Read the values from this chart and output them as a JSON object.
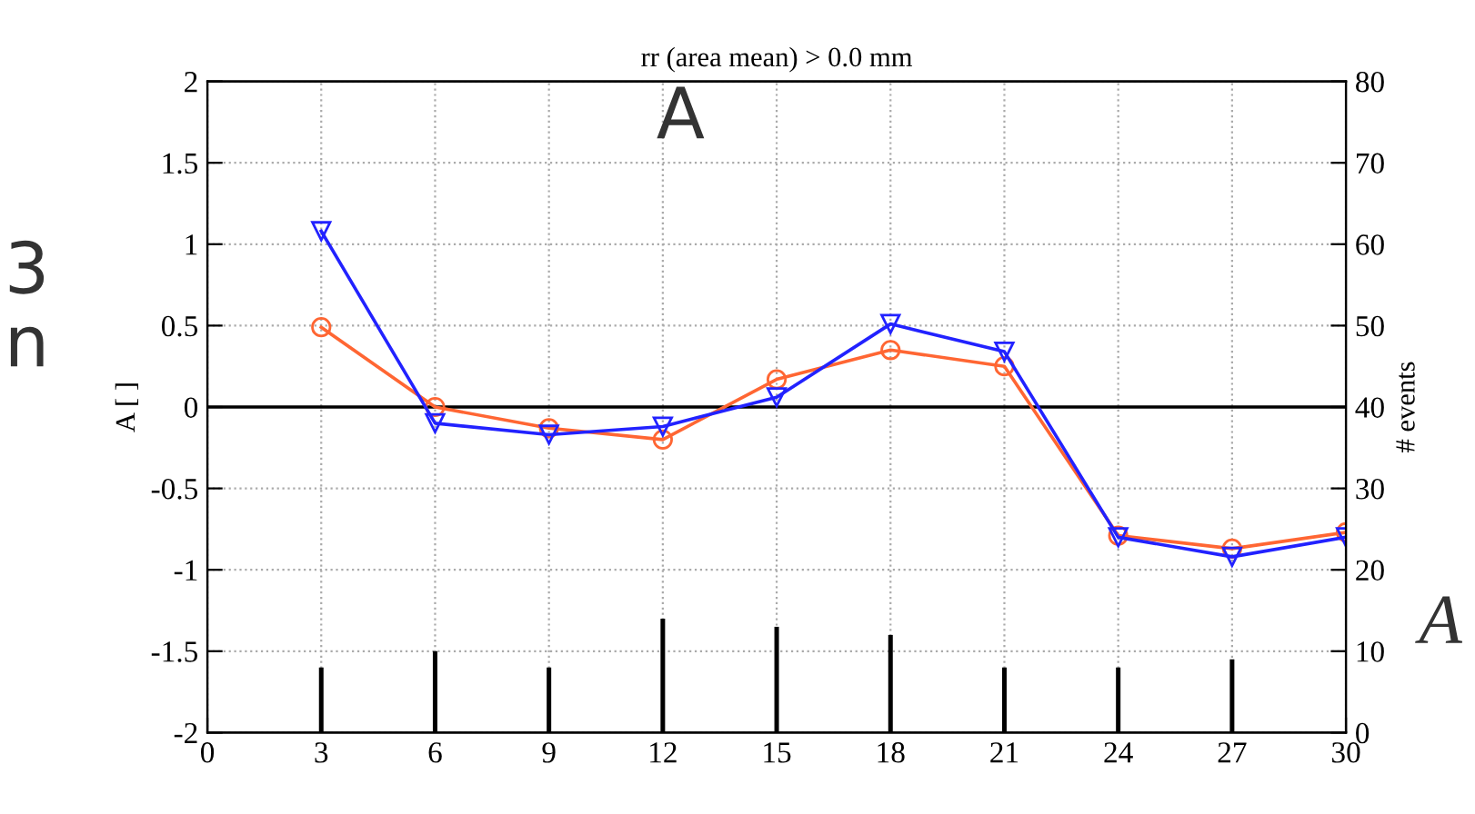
{
  "chart_data": {
    "type": "line",
    "title": "rr (area mean) > 0.0 mm",
    "ylabel": "A [ ]",
    "y2label": "# events",
    "x": [
      3,
      6,
      9,
      12,
      15,
      18,
      21,
      24,
      27,
      30
    ],
    "series": [
      {
        "color": "#2222ff",
        "marker": "triangle",
        "values": [
          1.08,
          -0.1,
          -0.17,
          -0.12,
          0.06,
          0.51,
          0.34,
          -0.8,
          -0.92,
          -0.8
        ]
      },
      {
        "color": "#ff6633",
        "marker": "circle",
        "values": [
          0.49,
          0.0,
          -0.13,
          -0.2,
          0.17,
          0.35,
          0.25,
          -0.79,
          -0.87,
          -0.77
        ]
      },
      {
        "type": "bar",
        "axis": "y2",
        "color": "#000000",
        "x": [
          3,
          6,
          9,
          12,
          15,
          18,
          21,
          24,
          27
        ],
        "values": [
          8,
          10,
          8,
          14,
          13,
          12,
          8,
          8,
          9
        ]
      }
    ],
    "xlim": [
      0,
      30
    ],
    "xticks": [
      0,
      3,
      6,
      9,
      12,
      15,
      18,
      21,
      24,
      27,
      30
    ],
    "ylim": [
      -2,
      2
    ],
    "yticks": [
      -2,
      -1.5,
      -1,
      -0.5,
      0,
      0.5,
      1,
      1.5,
      2
    ],
    "y2lim": [
      0,
      80
    ],
    "y2ticks": [
      0,
      10,
      20,
      30,
      40,
      50,
      60,
      70,
      80
    ],
    "ref_lines": [
      {
        "axis": "y",
        "value": 0,
        "color": "#000000"
      }
    ],
    "grid": true,
    "line_style": "solid",
    "annotations": [
      "A",
      "3",
      "n",
      "A"
    ]
  }
}
